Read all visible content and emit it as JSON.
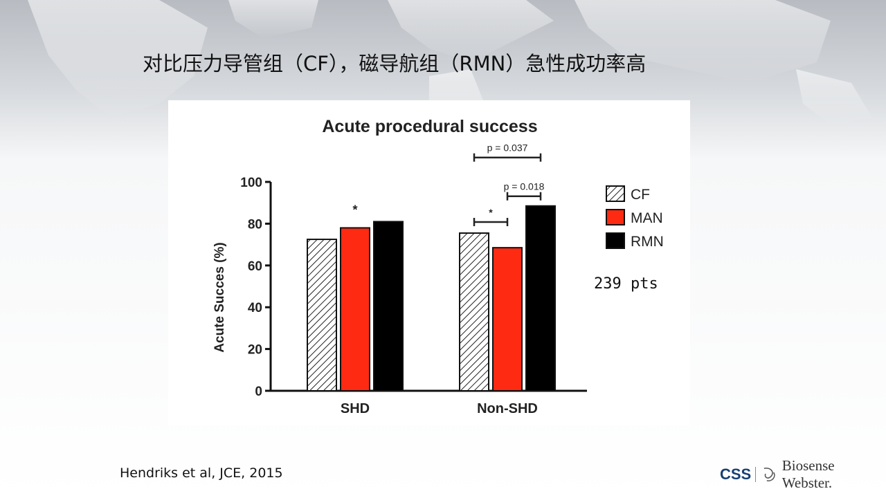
{
  "slide": {
    "title": "对比压力导管组（CF），磁导航组（RMN）急性成功率高",
    "sample_size": "239 pts",
    "citation": "Hendriks et al, JCE, 2015",
    "logo_brand": "CSS",
    "logo_company": "Biosense Webster."
  },
  "chart_data": {
    "type": "bar",
    "title": "Acute procedural success",
    "ylabel": "Acute Succes (%)",
    "xlabel": "",
    "ylim": [
      0,
      100
    ],
    "yticks": [
      "0",
      "20",
      "40",
      "60",
      "80",
      "100"
    ],
    "categories": [
      "SHD",
      "Non-SHD"
    ],
    "series": [
      {
        "name": "CF",
        "values": [
          72.5,
          75.5
        ],
        "pattern": "hatch",
        "color": "#ffffff"
      },
      {
        "name": "MAN",
        "values": [
          78,
          68.5
        ],
        "color": "#ff2a12"
      },
      {
        "name": "RMN",
        "values": [
          81,
          88.5
        ],
        "color": "#000000"
      }
    ],
    "legend_position": "right",
    "grid": false,
    "annotations": [
      {
        "label": "*",
        "category": 0,
        "series": 1
      },
      {
        "label": "*",
        "category": 1,
        "from_series": 0,
        "to_series": 1
      },
      {
        "label": "p = 0.018",
        "category": 1,
        "from_series": 1,
        "to_series": 2
      },
      {
        "label": "p = 0.037",
        "category": 1,
        "from_series": 0,
        "to_series": 2
      }
    ]
  }
}
